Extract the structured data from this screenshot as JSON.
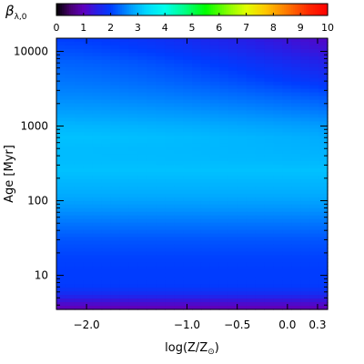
{
  "chart_data": {
    "type": "heatmap",
    "colorbar": {
      "label_greek": "β",
      "label_subscript": "λ,0",
      "range": [
        0,
        10
      ],
      "ticks": [
        0,
        1,
        2,
        3,
        4,
        5,
        6,
        7,
        8,
        9,
        10
      ],
      "colormap": "rainbow: black-purple-blue-cyan-green-yellow-orange-red"
    },
    "x": {
      "label_main": "log(Z/Z",
      "label_sub": "⊙",
      "label_close": ")",
      "range": [
        -2.3,
        0.4
      ],
      "ticks": [
        {
          "value": -2.0,
          "label": "−2.0"
        },
        {
          "value": -1.0,
          "label": "−1.0"
        },
        {
          "value": -0.5,
          "label": "−0.5"
        },
        {
          "value": 0.0,
          "label": "0.0"
        },
        {
          "value": 0.3,
          "label": "0.3"
        }
      ]
    },
    "y": {
      "label": "Age [Myr]",
      "scale": "log",
      "range": [
        3.5,
        15000
      ],
      "ticks": [
        {
          "value": 10,
          "label": "10"
        },
        {
          "value": 100,
          "label": "100"
        },
        {
          "value": 1000,
          "label": "1000"
        },
        {
          "value": 10000,
          "label": "10000"
        }
      ]
    },
    "profile": {
      "age_myr": [
        3.5,
        4.5,
        5.5,
        7,
        9,
        12,
        18,
        30,
        50,
        80,
        120,
        180,
        250,
        350,
        500,
        700,
        1000,
        1500,
        2500,
        4000,
        7000,
        10000,
        15000
      ],
      "beta_metal_poor": [
        0.9,
        1.3,
        1.7,
        1.95,
        2.0,
        2.0,
        2.05,
        2.2,
        2.45,
        2.7,
        2.9,
        3.0,
        3.1,
        3.05,
        3.05,
        3.1,
        3.0,
        2.8,
        2.6,
        2.45,
        2.3,
        2.15,
        2.0
      ],
      "beta_metal_rich": [
        0.9,
        1.3,
        1.7,
        1.95,
        2.0,
        2.0,
        2.05,
        2.2,
        2.45,
        2.7,
        2.9,
        3.0,
        3.1,
        3.0,
        2.95,
        2.9,
        2.75,
        2.5,
        2.2,
        1.85,
        1.55,
        1.3,
        1.1
      ]
    }
  }
}
